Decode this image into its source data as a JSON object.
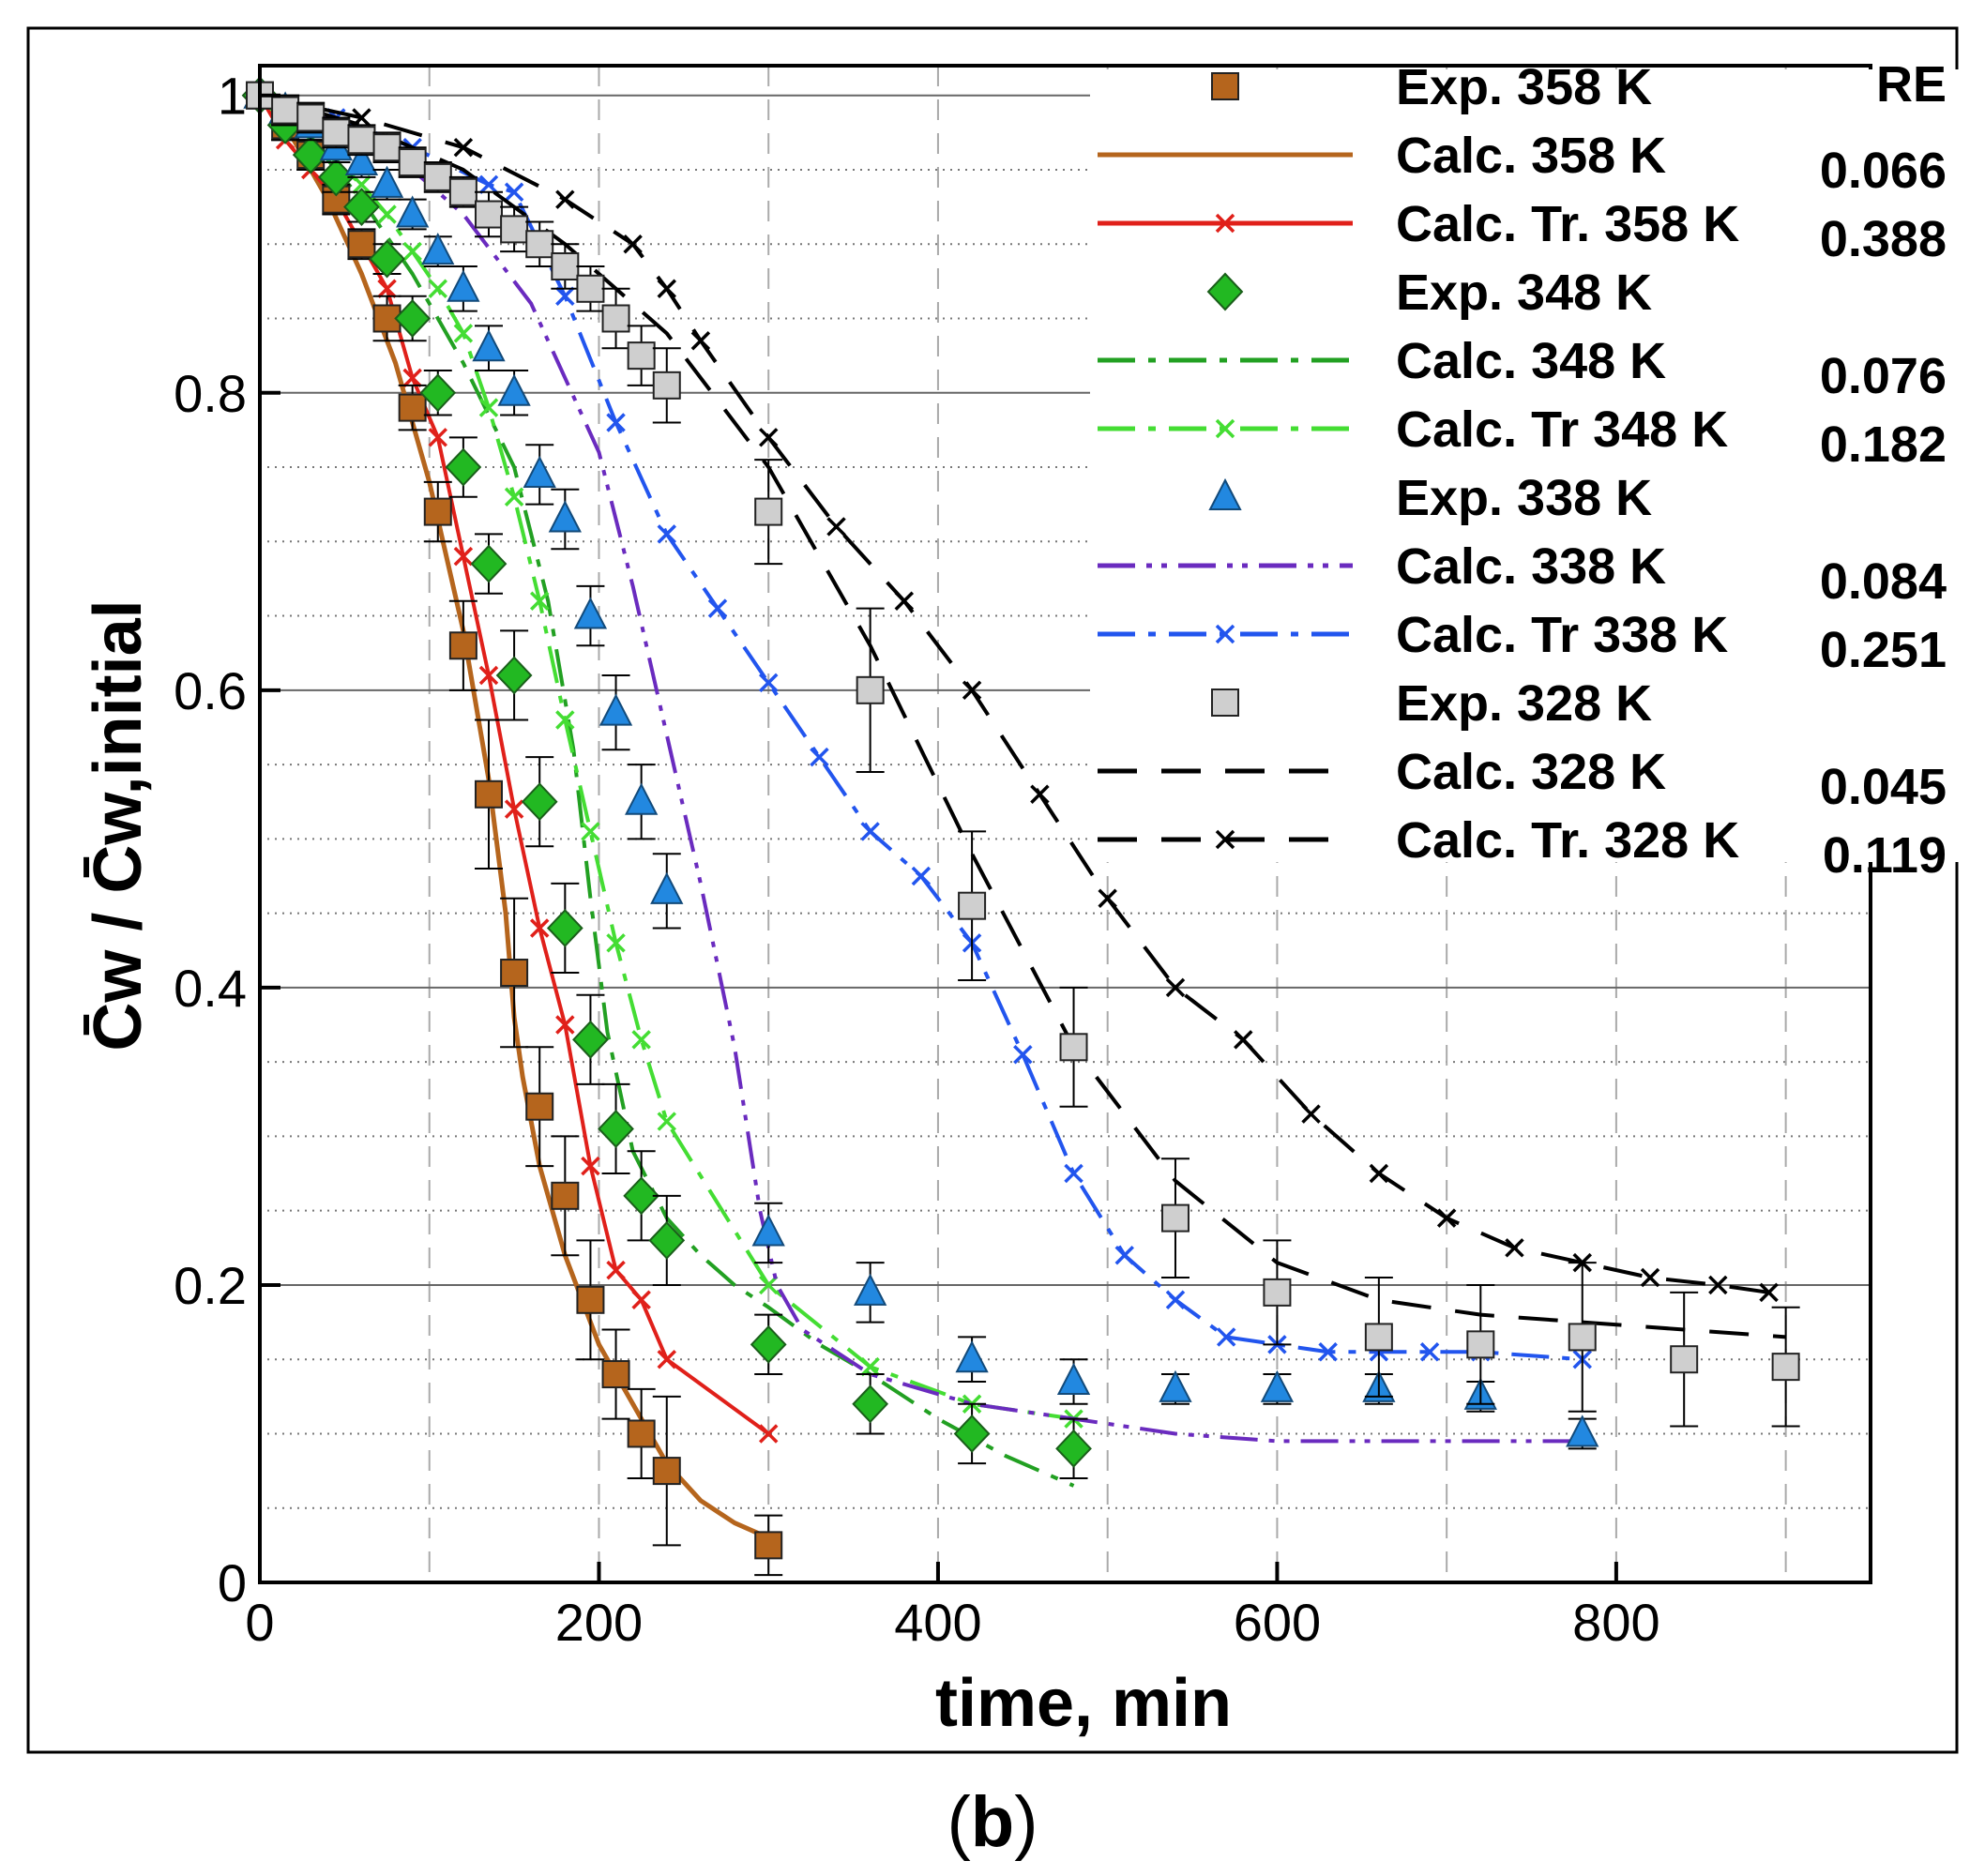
{
  "chart_data": {
    "type": "line",
    "panel_label": "b",
    "xlabel": "time, min",
    "ylabel": "C̄w / C̄w,initial",
    "xlim": [
      0,
      950
    ],
    "ylim": [
      0,
      1.02
    ],
    "x_major_ticks": [
      0,
      200,
      400,
      600,
      800
    ],
    "x_tick_labels": [
      "0",
      "200",
      "400",
      "600",
      "800"
    ],
    "x_minor_gridlines": [
      100,
      200,
      300,
      400,
      500,
      600,
      700,
      800,
      900
    ],
    "y_major_ticks": [
      0,
      0.2,
      0.4,
      0.6,
      0.8,
      1.0
    ],
    "y_tick_labels": [
      "0",
      "0.2",
      "0.4",
      "0.6",
      "0.8",
      "1"
    ],
    "y_minor_gridlines": [
      0.05,
      0.1,
      0.15,
      0.25,
      0.3,
      0.35,
      0.45,
      0.5,
      0.55,
      0.65,
      0.7,
      0.75,
      0.85,
      0.9,
      0.95
    ],
    "legend_title": "RE",
    "legend": [
      {
        "label": "Exp. 358 K",
        "re": ""
      },
      {
        "label": "Calc. 358 K",
        "re": "0.066"
      },
      {
        "label": "Calc. Tr. 358 K",
        "re": "0.388"
      },
      {
        "label": "Exp. 348 K",
        "re": ""
      },
      {
        "label": "Calc. 348 K",
        "re": "0.076"
      },
      {
        "label": "Calc. Tr 348 K",
        "re": "0.182"
      },
      {
        "label": "Exp. 338 K",
        "re": ""
      },
      {
        "label": "Calc. 338 K",
        "re": "0.084"
      },
      {
        "label": "Calc. Tr 338 K",
        "re": "0.251"
      },
      {
        "label": "Exp. 328 K",
        "re": ""
      },
      {
        "label": "Calc. 328 K",
        "re": "0.045"
      },
      {
        "label": "Calc. Tr. 328 K",
        "re": "0.119"
      }
    ],
    "series": [
      {
        "name": "Exp. 358 K",
        "kind": "marker",
        "marker": "square",
        "color": "#b5651d",
        "x": [
          0,
          15,
          30,
          45,
          60,
          75,
          90,
          105,
          120,
          135,
          150,
          165,
          180,
          195,
          210,
          225,
          240,
          300
        ],
        "y": [
          1.0,
          0.98,
          0.96,
          0.93,
          0.9,
          0.85,
          0.79,
          0.72,
          0.63,
          0.53,
          0.41,
          0.32,
          0.26,
          0.19,
          0.14,
          0.1,
          0.075,
          0.025
        ],
        "err": [
          0,
          0.01,
          0.01,
          0.01,
          0.01,
          0.015,
          0.015,
          0.02,
          0.03,
          0.05,
          0.05,
          0.04,
          0.04,
          0.04,
          0.03,
          0.03,
          0.05,
          0.02
        ]
      },
      {
        "name": "Calc. 358 K",
        "kind": "line",
        "style": "solid",
        "color": "#b5651d",
        "x": [
          0,
          20,
          40,
          60,
          80,
          100,
          120,
          135,
          145,
          150,
          155,
          165,
          180,
          200,
          220,
          240,
          260,
          280,
          300
        ],
        "y": [
          1.0,
          0.97,
          0.93,
          0.88,
          0.82,
          0.74,
          0.64,
          0.54,
          0.45,
          0.38,
          0.34,
          0.28,
          0.22,
          0.16,
          0.12,
          0.08,
          0.055,
          0.04,
          0.03
        ]
      },
      {
        "name": "Calc. Tr. 358 K",
        "kind": "line",
        "style": "solid",
        "color": "#e0201a",
        "marker": "x",
        "x": [
          0,
          15,
          30,
          45,
          60,
          75,
          90,
          105,
          120,
          135,
          150,
          165,
          180,
          195,
          210,
          225,
          240,
          300
        ],
        "y": [
          1.0,
          0.97,
          0.95,
          0.93,
          0.9,
          0.87,
          0.81,
          0.77,
          0.69,
          0.61,
          0.52,
          0.44,
          0.375,
          0.28,
          0.21,
          0.19,
          0.15,
          0.1
        ]
      },
      {
        "name": "Exp. 348 K",
        "kind": "marker",
        "marker": "diamond",
        "color": "#22b822",
        "x": [
          0,
          15,
          30,
          45,
          60,
          75,
          90,
          105,
          120,
          135,
          150,
          165,
          180,
          195,
          210,
          225,
          240,
          300,
          360,
          420,
          480
        ],
        "y": [
          1.0,
          0.98,
          0.96,
          0.945,
          0.925,
          0.89,
          0.85,
          0.8,
          0.75,
          0.685,
          0.61,
          0.525,
          0.44,
          0.365,
          0.305,
          0.26,
          0.23,
          0.16,
          0.12,
          0.1,
          0.09
        ],
        "err": [
          0,
          0.01,
          0.01,
          0.01,
          0.01,
          0.01,
          0.015,
          0.015,
          0.02,
          0.02,
          0.03,
          0.03,
          0.03,
          0.03,
          0.03,
          0.03,
          0.03,
          0.02,
          0.02,
          0.02,
          0.02
        ]
      },
      {
        "name": "Calc. 348 K",
        "kind": "line",
        "style": "dashdot",
        "color": "#22a022",
        "x": [
          0,
          30,
          60,
          90,
          120,
          150,
          170,
          185,
          195,
          205,
          220,
          240,
          260,
          280,
          300,
          330,
          360,
          400,
          440,
          480
        ],
        "y": [
          1.0,
          0.97,
          0.93,
          0.88,
          0.82,
          0.75,
          0.66,
          0.56,
          0.46,
          0.37,
          0.29,
          0.245,
          0.22,
          0.2,
          0.185,
          0.16,
          0.14,
          0.11,
          0.085,
          0.065
        ]
      },
      {
        "name": "Calc. Tr 348 K",
        "kind": "line",
        "style": "dashdot",
        "color": "#44dd33",
        "marker": "x",
        "x": [
          0,
          15,
          30,
          45,
          60,
          75,
          90,
          105,
          120,
          135,
          150,
          165,
          180,
          195,
          210,
          225,
          240,
          300,
          360,
          420,
          480
        ],
        "y": [
          1.0,
          0.98,
          0.97,
          0.955,
          0.94,
          0.92,
          0.895,
          0.87,
          0.84,
          0.79,
          0.73,
          0.66,
          0.58,
          0.505,
          0.43,
          0.365,
          0.31,
          0.2,
          0.145,
          0.12,
          0.11
        ]
      },
      {
        "name": "Exp. 338 K",
        "kind": "marker",
        "marker": "triangle",
        "color": "#2288e0",
        "x": [
          0,
          15,
          30,
          45,
          60,
          75,
          90,
          105,
          120,
          135,
          150,
          165,
          180,
          195,
          210,
          225,
          240,
          300,
          360,
          420,
          480,
          540,
          600,
          660,
          720,
          780
        ],
        "y": [
          1.0,
          0.99,
          0.98,
          0.965,
          0.955,
          0.94,
          0.92,
          0.895,
          0.87,
          0.83,
          0.8,
          0.745,
          0.715,
          0.65,
          0.585,
          0.525,
          0.465,
          0.235,
          0.195,
          0.15,
          0.135,
          0.13,
          0.13,
          0.13,
          0.125,
          0.1
        ],
        "err": [
          0,
          0.01,
          0.01,
          0.01,
          0.01,
          0.01,
          0.01,
          0.01,
          0.015,
          0.015,
          0.015,
          0.02,
          0.02,
          0.02,
          0.025,
          0.025,
          0.025,
          0.02,
          0.02,
          0.015,
          0.015,
          0.01,
          0.01,
          0.01,
          0.01,
          0.01
        ]
      },
      {
        "name": "Calc. 338 K",
        "kind": "line",
        "style": "dashdotdot",
        "color": "#6a2bbf",
        "x": [
          0,
          40,
          80,
          120,
          160,
          200,
          220,
          240,
          260,
          280,
          295,
          305,
          320,
          360,
          420,
          480,
          540,
          600,
          700,
          780
        ],
        "y": [
          1.0,
          0.985,
          0.96,
          0.92,
          0.86,
          0.76,
          0.67,
          0.57,
          0.47,
          0.36,
          0.25,
          0.2,
          0.17,
          0.14,
          0.12,
          0.11,
          0.1,
          0.095,
          0.095,
          0.095
        ]
      },
      {
        "name": "Calc. Tr 338 K",
        "kind": "line",
        "style": "dashdot",
        "color": "#2255ee",
        "marker": "x",
        "x": [
          0,
          45,
          90,
          135,
          150,
          180,
          210,
          240,
          270,
          300,
          330,
          360,
          390,
          420,
          450,
          480,
          510,
          540,
          570,
          600,
          630,
          660,
          690,
          720,
          780
        ],
        "y": [
          1.0,
          0.985,
          0.965,
          0.94,
          0.935,
          0.865,
          0.78,
          0.705,
          0.655,
          0.605,
          0.555,
          0.505,
          0.475,
          0.43,
          0.355,
          0.275,
          0.22,
          0.19,
          0.165,
          0.16,
          0.155,
          0.155,
          0.155,
          0.155,
          0.15
        ]
      },
      {
        "name": "Exp. 328 K",
        "kind": "marker",
        "marker": "square",
        "color": "#cfcfcf",
        "x": [
          0,
          15,
          30,
          45,
          60,
          75,
          90,
          105,
          120,
          135,
          150,
          165,
          180,
          195,
          210,
          225,
          240,
          300,
          360,
          420,
          480,
          540,
          600,
          660,
          720,
          780,
          840,
          900
        ],
        "y": [
          1.0,
          0.99,
          0.985,
          0.975,
          0.97,
          0.965,
          0.955,
          0.945,
          0.935,
          0.92,
          0.91,
          0.9,
          0.885,
          0.87,
          0.85,
          0.825,
          0.805,
          0.72,
          0.6,
          0.455,
          0.36,
          0.245,
          0.195,
          0.165,
          0.16,
          0.165,
          0.15,
          0.145
        ],
        "err": [
          0,
          0.01,
          0.01,
          0.01,
          0.01,
          0.01,
          0.01,
          0.01,
          0.01,
          0.015,
          0.015,
          0.015,
          0.015,
          0.015,
          0.02,
          0.02,
          0.025,
          0.035,
          0.055,
          0.05,
          0.04,
          0.04,
          0.035,
          0.04,
          0.04,
          0.05,
          0.045,
          0.04
        ]
      },
      {
        "name": "Calc. 328 K",
        "kind": "line",
        "style": "dashed",
        "color": "#000000",
        "x": [
          0,
          60,
          120,
          180,
          240,
          300,
          360,
          420,
          480,
          540,
          600,
          660,
          720,
          780,
          840,
          900
        ],
        "y": [
          1.0,
          0.98,
          0.95,
          0.9,
          0.84,
          0.75,
          0.63,
          0.49,
          0.36,
          0.27,
          0.215,
          0.19,
          0.18,
          0.175,
          0.17,
          0.165
        ]
      },
      {
        "name": "Calc. Tr. 328 K",
        "kind": "line",
        "style": "dashed",
        "color": "#000000",
        "marker": "x",
        "x": [
          0,
          60,
          120,
          180,
          220,
          240,
          260,
          300,
          340,
          380,
          420,
          460,
          500,
          540,
          580,
          620,
          660,
          700,
          740,
          780,
          820,
          860,
          890
        ],
        "y": [
          1.0,
          0.985,
          0.965,
          0.93,
          0.9,
          0.87,
          0.835,
          0.77,
          0.71,
          0.66,
          0.6,
          0.53,
          0.46,
          0.4,
          0.365,
          0.315,
          0.275,
          0.245,
          0.225,
          0.215,
          0.205,
          0.2,
          0.195
        ]
      }
    ]
  }
}
